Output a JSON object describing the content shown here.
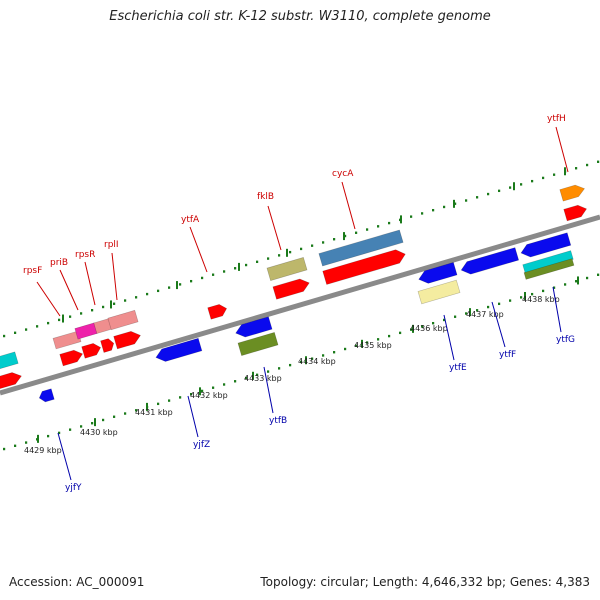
{
  "title": "Escherichia coli str. K-12 substr. W3110, complete genome",
  "footer": {
    "accession": "Accession: AC_000091",
    "info": "Topology: circular; Length: 4,646,332 bp; Genes: 4,383"
  },
  "scale_labels": [
    "4429 kbp",
    "4430 kbp",
    "4431 kbp",
    "4432 kbp",
    "4433 kbp",
    "4434 kbp",
    "4435 kbp",
    "4436 kbp",
    "4437 kbp",
    "4438 kbp"
  ],
  "gene_labels_top": [
    "rpsF",
    "priB",
    "rpsR",
    "rplI",
    "ytfA",
    "fklB",
    "cycA",
    "ytfH"
  ],
  "gene_labels_bottom": [
    "yjfY",
    "yjfZ",
    "ytfB",
    "ytfE",
    "ytfF",
    "ytfG"
  ],
  "colors": {
    "backbone": "#8a8a8a",
    "label_top": "#cc0000",
    "label_bottom": "#0000aa",
    "scale_tick": "#1a7a1a",
    "red": "#ff0000",
    "blue": "#0a0aee",
    "pink": "#ef8e8e",
    "magenta": "#ee22aa",
    "khaki": "#bdb76b",
    "steelblue": "#4682b4",
    "olive": "#6b8e23",
    "cyan": "#00cccc",
    "lightyellow": "#f4eca0",
    "orange": "#ff8c00"
  }
}
